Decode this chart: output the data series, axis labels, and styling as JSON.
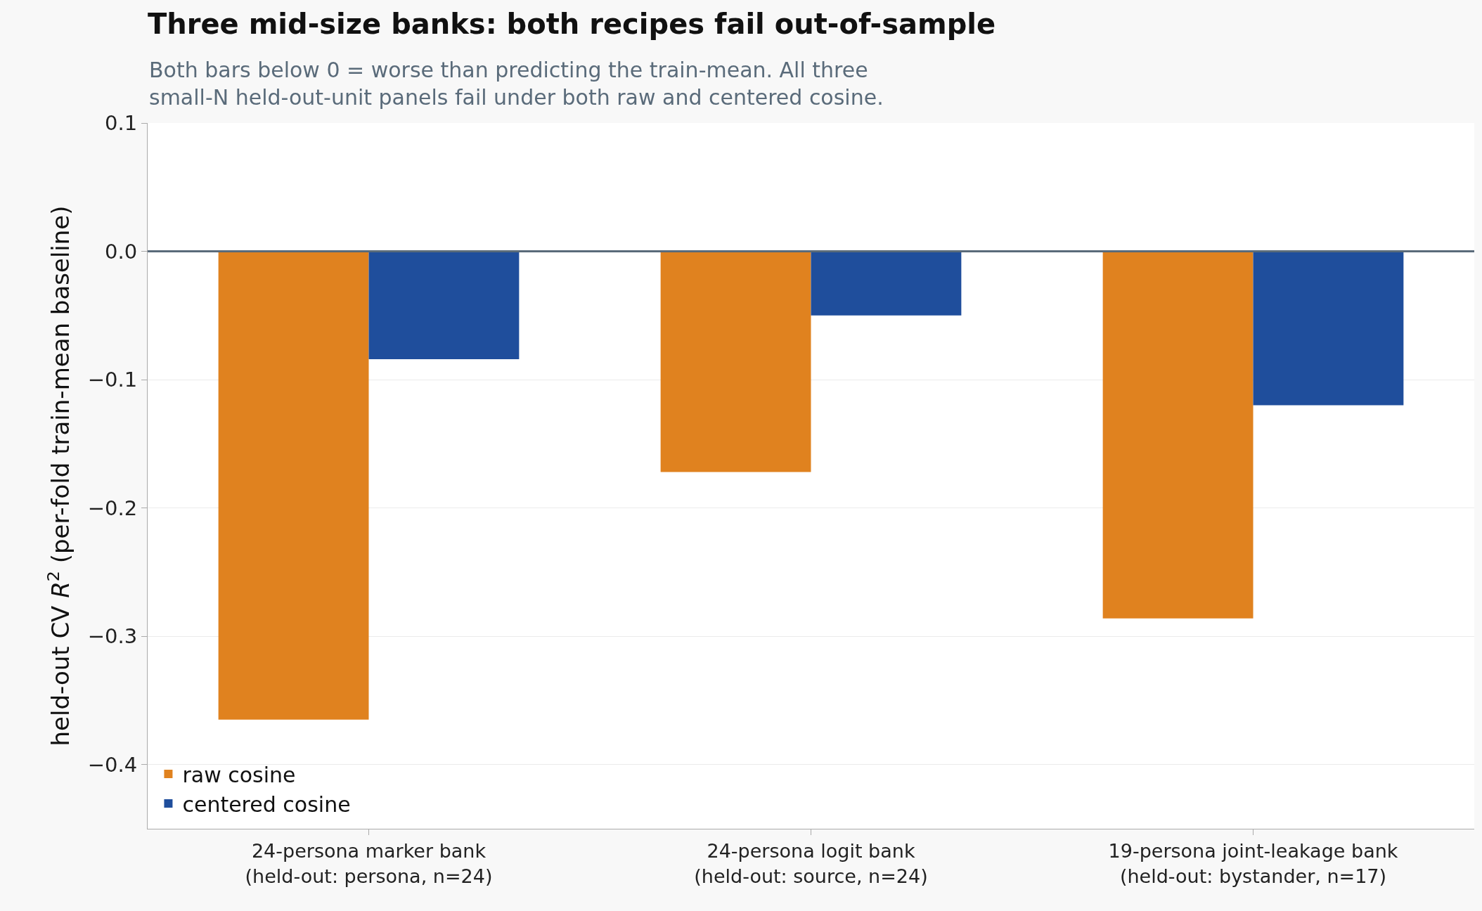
{
  "chart_data": {
    "type": "bar",
    "title": "Three mid-size banks: both recipes fail out-of-sample",
    "subtitle": "Both bars below 0 = worse than predicting the train-mean. All three\nsmall-N held-out-unit panels fail under both raw and centered cosine.",
    "ylabel": "held-out CV R$^{2}$ (per-fold train-mean baseline)",
    "categories": [
      "24-persona marker bank\n(held-out: persona, n=24)",
      "24-persona logit bank\n(held-out: source, n=24)",
      "19-persona joint-leakage bank\n(held-out: bystander, n=17)"
    ],
    "series": [
      {
        "name": "raw cosine",
        "color": "#e0821f",
        "values": [
          -0.365,
          -0.172,
          -0.286
        ]
      },
      {
        "name": "centered cosine",
        "color": "#1f4e9c",
        "values": [
          -0.084,
          -0.05,
          -0.12
        ]
      }
    ],
    "ylim": [
      -0.45,
      0.1
    ],
    "yticks": [
      {
        "value": -0.4,
        "label": "−0.4"
      },
      {
        "value": -0.3,
        "label": "−0.3"
      },
      {
        "value": -0.2,
        "label": "−0.2"
      },
      {
        "value": -0.1,
        "label": "−0.1"
      },
      {
        "value": 0,
        "label": "0.0"
      },
      0.1
    ],
    "ref_lines": [
      {
        "axis": "y",
        "value": 0,
        "color": "#5a6b7a"
      }
    ],
    "grid": "y",
    "legend": "bottom left"
  }
}
